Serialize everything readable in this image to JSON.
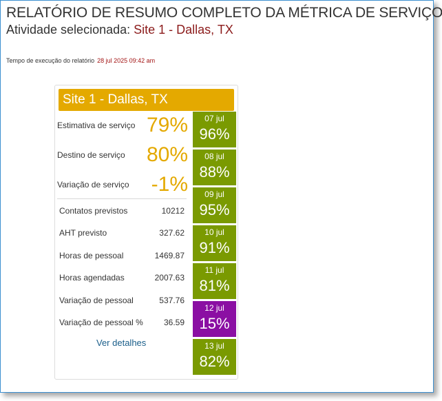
{
  "report": {
    "title": "RELATÓRIO DE RESUMO COMPLETO DA MÉTRICA DE SERVIÇO",
    "activity_label": "Atividade selecionada: ",
    "activity_value": "Site 1 - Dallas, TX",
    "runtime_label": "Tempo de execução do relatório",
    "runtime_value": "28 jul 2025 09:42 am"
  },
  "card": {
    "header": "Site 1 - Dallas, TX",
    "service_metrics": [
      {
        "label": "Estimativa de serviço",
        "value": "79%"
      },
      {
        "label": "Destino de serviço",
        "value": "80%"
      },
      {
        "label": "Variação de serviço",
        "value": "-1%"
      }
    ],
    "stats": [
      {
        "label": "Contatos previstos",
        "value": "10212"
      },
      {
        "label": "AHT previsto",
        "value": "327.62"
      },
      {
        "label": "Horas de pessoal",
        "value": "1469.87"
      },
      {
        "label": "Horas agendadas",
        "value": "2007.63"
      },
      {
        "label": "Variação de pessoal",
        "value": "537.76"
      },
      {
        "label": "Variação de pessoal %",
        "value": "36.59"
      }
    ],
    "details_link": "Ver detalhes",
    "days": [
      {
        "date": "07 jul",
        "pct": "96%",
        "color": "#7a9a01"
      },
      {
        "date": "08 jul",
        "pct": "88%",
        "color": "#7a9a01"
      },
      {
        "date": "09 jul",
        "pct": "95%",
        "color": "#7a9a01"
      },
      {
        "date": "10 jul",
        "pct": "91%",
        "color": "#7a9a01"
      },
      {
        "date": "11 jul",
        "pct": "81%",
        "color": "#7a9a01"
      },
      {
        "date": "12 jul",
        "pct": "15%",
        "color": "#8b0fa3"
      },
      {
        "date": "13 jul",
        "pct": "82%",
        "color": "#7a9a01"
      }
    ]
  }
}
